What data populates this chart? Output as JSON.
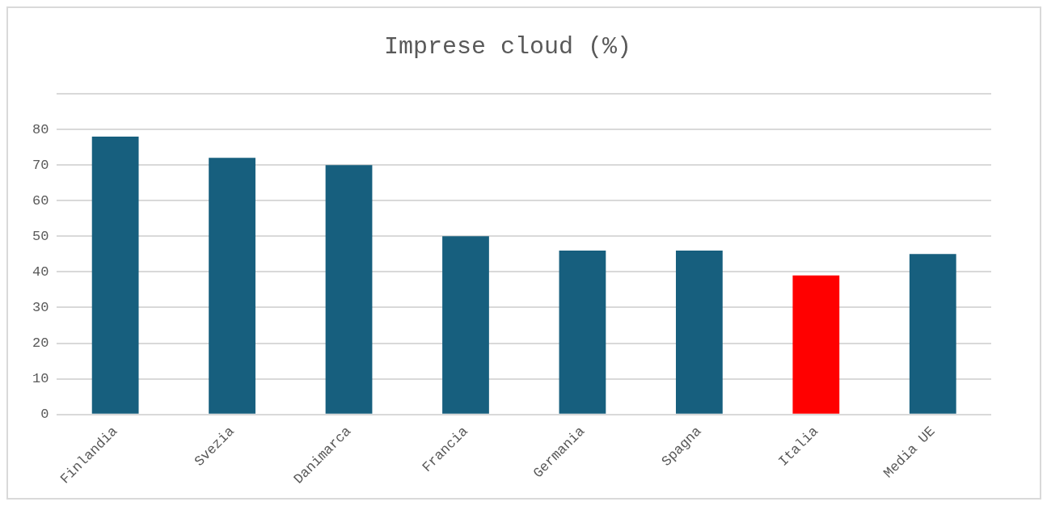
{
  "chart_data": {
    "type": "bar",
    "title": "Imprese cloud (%)",
    "categories": [
      "Finlandia",
      "Svezia",
      "Danimarca",
      "Francia",
      "Germania",
      "Spagna",
      "Italia",
      "Media UE"
    ],
    "values": [
      78,
      72,
      70,
      50,
      46,
      46,
      39,
      45
    ],
    "colors": [
      "#175f7e",
      "#175f7e",
      "#175f7e",
      "#175f7e",
      "#175f7e",
      "#175f7e",
      "#ff0000",
      "#175f7e"
    ],
    "ylim": [
      0,
      90
    ],
    "yticks": [
      0,
      10,
      20,
      30,
      40,
      50,
      60,
      70,
      80,
      {
        "value": 90,
        "label": null
      }
    ],
    "grid": "y",
    "legend": false
  }
}
